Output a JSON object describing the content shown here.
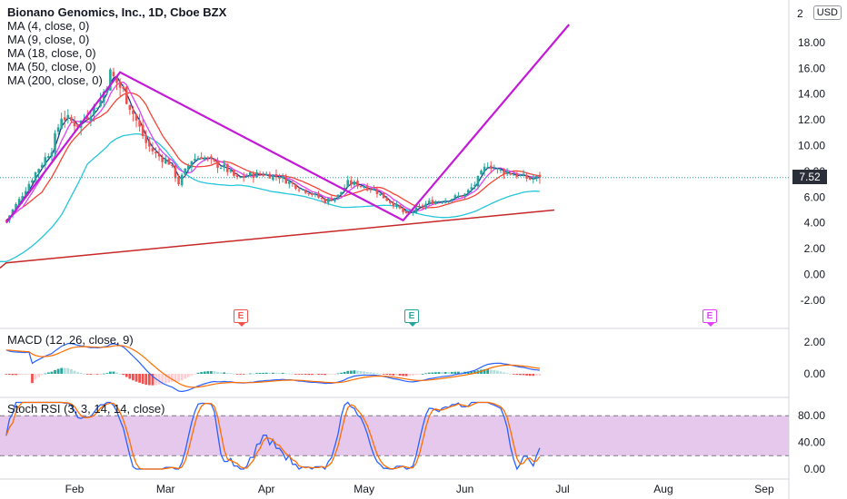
{
  "header": {
    "symbol_title": "Bionano Genomics, Inc., 1D, Cboe BZX",
    "indicators": [
      "MA (4, close, 0)",
      "MA (9, close, 0)",
      "MA (18, close, 0)",
      "MA (50, close, 0)",
      "MA (200, close, 0)"
    ],
    "currency": "USD"
  },
  "panes": {
    "macd_label": "MACD (12, 26, close, 9)",
    "stochrsi_label": "Stoch RSI (3, 3, 14, 14, close)"
  },
  "last_price": "7.52",
  "earnings_markers": [
    {
      "label": "E",
      "color": "#ef5350",
      "x_label": "Mar"
    },
    {
      "label": "E",
      "color": "#26a69a",
      "x_label": "May"
    },
    {
      "label": "E",
      "color": "#e040fb",
      "x_label": "Aug"
    }
  ],
  "colors": {
    "up": "#26a69a",
    "down": "#ef5350",
    "ma4": "#1e3a8a",
    "ma9": "#e040fb",
    "ma18": "#f44336",
    "ma50": "#26c6da",
    "ma200": "#c62828",
    "drawing": "#c41ad8",
    "macd": "#2962ff",
    "signal": "#ff6d00",
    "stoch_k": "#2962ff",
    "stoch_d": "#ff6d00",
    "stoch_band": "#e1bee7"
  },
  "chart_data": [
    {
      "type": "candlestick",
      "title": "Bionano Genomics, Inc., 1D, Cboe BZX",
      "x_ticks": [
        "Feb",
        "Mar",
        "Apr",
        "May",
        "Jun",
        "Jul",
        "Aug",
        "Sep"
      ],
      "y_ticks": [
        "-2.00",
        "0.00",
        "2.00",
        "4.00",
        "6.00",
        "8.00",
        "10.00",
        "12.00",
        "14.00",
        "16.00",
        "18.00"
      ],
      "ylim": [
        -3,
        21
      ],
      "close_path": [
        [
          "Jan 11",
          4.2
        ],
        [
          "Jan 15",
          5.8
        ],
        [
          "Jan 20",
          7.9
        ],
        [
          "Jan 25",
          9.8
        ],
        [
          "Jan 28",
          12.3
        ],
        [
          "Feb 2",
          11.6
        ],
        [
          "Feb 5",
          12.4
        ],
        [
          "Feb 9",
          13.5
        ],
        [
          "Feb 12",
          15.6
        ],
        [
          "Feb 16",
          14.2
        ],
        [
          "Feb 19",
          12.5
        ],
        [
          "Feb 23",
          10.2
        ],
        [
          "Feb 26",
          9.3
        ],
        [
          "Mar 2",
          8.7
        ],
        [
          "Mar 5",
          7.1
        ],
        [
          "Mar 9",
          8.9
        ],
        [
          "Mar 12",
          9.2
        ],
        [
          "Mar 16",
          8.6
        ],
        [
          "Mar 19",
          8.3
        ],
        [
          "Mar 23",
          7.4
        ],
        [
          "Mar 26",
          7.7
        ],
        [
          "Mar 31",
          7.8
        ],
        [
          "Apr 5",
          7.6
        ],
        [
          "Apr 9",
          7.0
        ],
        [
          "Apr 14",
          6.4
        ],
        [
          "Apr 19",
          5.7
        ],
        [
          "Apr 23",
          6.1
        ],
        [
          "Apr 26",
          7.1
        ],
        [
          "Apr 29",
          7.0
        ],
        [
          "May 4",
          6.6
        ],
        [
          "May 7",
          6.0
        ],
        [
          "May 11",
          5.3
        ],
        [
          "May 14",
          4.6
        ],
        [
          "May 18",
          5.2
        ],
        [
          "May 21",
          5.6
        ],
        [
          "May 26",
          5.8
        ],
        [
          "Jun 1",
          6.2
        ],
        [
          "Jun 4",
          7.0
        ],
        [
          "Jun 8",
          8.6
        ],
        [
          "Jun 11",
          8.1
        ],
        [
          "Jun 16",
          7.8
        ],
        [
          "Jun 21",
          7.4
        ],
        [
          "Jun 24",
          7.52
        ]
      ],
      "drawing_points": [
        [
          "Jan 11",
          4.0
        ],
        [
          "Feb 15",
          15.7
        ],
        [
          "May 13",
          4.2
        ],
        [
          "Jul 3",
          19.4
        ]
      ],
      "last_price": 7.52
    },
    {
      "type": "line",
      "title": "MACD (12, 26, close, 9)",
      "y_ticks": [
        "0.00",
        "2.00"
      ],
      "ylim": [
        -1.2,
        3.0
      ]
    },
    {
      "type": "line",
      "title": "Stoch RSI (3, 3, 14, 14, close)",
      "y_ticks": [
        "0.00",
        "40.00",
        "80.00"
      ],
      "band": [
        20,
        80
      ],
      "ylim": [
        -5,
        100
      ]
    }
  ]
}
